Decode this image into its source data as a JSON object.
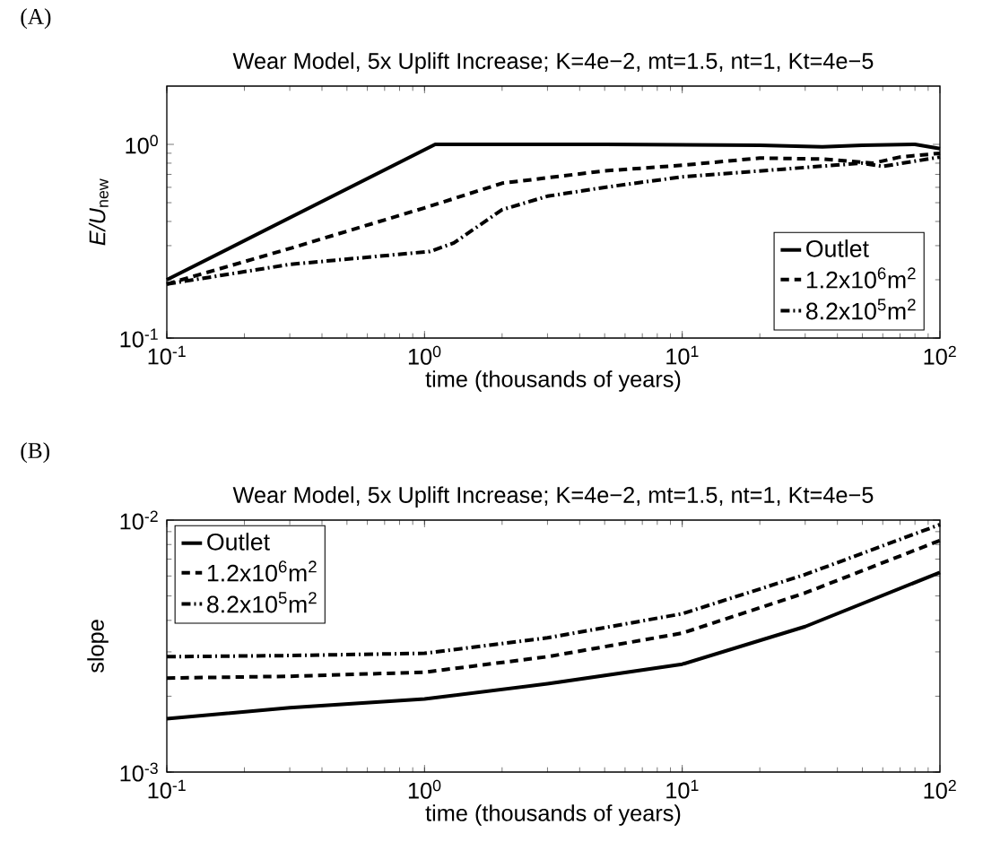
{
  "chart_data": [
    {
      "type": "line",
      "title": "Wear Model, 5x Uplift Increase; K=4e−2, mt=1.5, nt=1, Kt=4e−5",
      "xlabel": "time (thousands of years)",
      "ylabel": "*E/U*$_{new}$",
      "annotations": [
        "(A)"
      ],
      "log": "xy",
      "legend": "bottom right",
      "xlim": [
        0.1,
        100
      ],
      "ylim": [
        0.1,
        2
      ],
      "xticks": [
        {
          "value": 0.1,
          "label": "10$^{-1}$"
        },
        {
          "value": 1,
          "label": "10$^{0}$"
        },
        {
          "value": 10,
          "label": "10$^{1}$"
        },
        {
          "value": 100,
          "label": "10$^{2}$"
        }
      ],
      "yticks": [
        {
          "value": 0.1,
          "label": "10$^{-1}$"
        },
        {
          "value": 1,
          "label": "10$^{0}$"
        }
      ],
      "series": [
        {
          "name": "Outlet",
          "color": "#000000",
          "line_style": "solid",
          "x": [
            0.1,
            1.1,
            5,
            20,
            35,
            50,
            80,
            100
          ],
          "values": [
            0.2,
            1,
            1,
            0.99,
            0.97,
            0.99,
            1,
            0.95
          ]
        },
        {
          "name": "1.2x10$^{6}$m$^{2}$",
          "color": "#000000",
          "line_style": "dashed",
          "x": [
            0.1,
            0.3,
            1,
            2,
            5,
            10,
            20,
            35,
            55,
            70,
            100
          ],
          "values": [
            0.19,
            0.29,
            0.47,
            0.63,
            0.73,
            0.78,
            0.85,
            0.84,
            0.8,
            0.86,
            0.9
          ]
        },
        {
          "name": "8.2x10$^{5}$m$^{2}$",
          "color": "#000000",
          "line_style": "dashdot",
          "x": [
            0.1,
            0.3,
            1.05,
            1.3,
            2,
            3,
            5,
            10,
            30,
            50,
            60,
            100
          ],
          "values": [
            0.19,
            0.24,
            0.28,
            0.31,
            0.46,
            0.54,
            0.6,
            0.68,
            0.76,
            0.8,
            0.77,
            0.86
          ]
        }
      ]
    },
    {
      "type": "line",
      "title": "Wear Model, 5x Uplift Increase; K=4e−2, mt=1.5, nt=1, Kt=4e−5",
      "xlabel": "time (thousands of years)",
      "ylabel": "slope",
      "annotations": [
        "(B)"
      ],
      "log": "xy",
      "legend": "top left",
      "xlim": [
        0.1,
        100
      ],
      "ylim": [
        0.001,
        0.01
      ],
      "xticks": [
        {
          "value": 0.1,
          "label": "10$^{-1}$"
        },
        {
          "value": 1,
          "label": "10$^{0}$"
        },
        {
          "value": 10,
          "label": "10$^{1}$"
        },
        {
          "value": 100,
          "label": "10$^{2}$"
        }
      ],
      "yticks": [
        {
          "value": 0.001,
          "label": "10$^{-3}$"
        },
        {
          "value": 0.01,
          "label": "10$^{-2}$"
        }
      ],
      "series": [
        {
          "name": "Outlet",
          "color": "#000000",
          "line_style": "solid",
          "x": [
            0.1,
            0.3,
            1,
            3,
            10,
            30,
            100
          ],
          "values": [
            0.00163,
            0.0018,
            0.00195,
            0.00224,
            0.00268,
            0.00378,
            0.0062
          ]
        },
        {
          "name": "1.2x10$^{6}$m$^{2}$",
          "color": "#000000",
          "line_style": "dashed",
          "x": [
            0.1,
            0.3,
            1,
            3,
            10,
            30,
            100
          ],
          "values": [
            0.00236,
            0.0024,
            0.00249,
            0.00287,
            0.00356,
            0.00514,
            0.0083
          ]
        },
        {
          "name": "8.2x10$^{5}$m$^{2}$",
          "color": "#000000",
          "line_style": "dashdot",
          "x": [
            0.1,
            0.3,
            1,
            3,
            10,
            30,
            100
          ],
          "values": [
            0.00287,
            0.0029,
            0.00296,
            0.00341,
            0.00425,
            0.00608,
            0.0096
          ]
        }
      ]
    }
  ]
}
